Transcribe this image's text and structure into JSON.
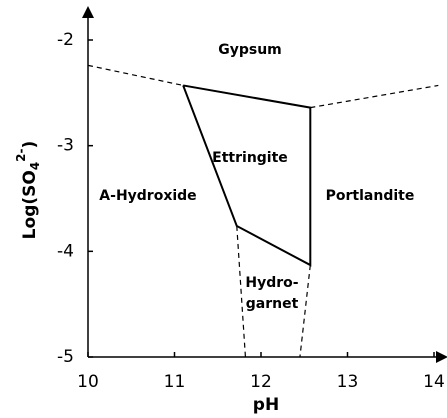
{
  "chart_data": {
    "type": "line",
    "xlabel": "pH",
    "ylabel": [
      "Log(SO",
      "4",
      "2-",
      ")"
    ],
    "xlim": [
      10,
      14
    ],
    "ylim": [
      -5,
      -2
    ],
    "xticks": [
      10,
      11,
      12,
      13,
      14
    ],
    "yticks": [
      -2,
      -3,
      -4,
      -5
    ],
    "series": [
      {
        "color": "#000000",
        "style": "dashed",
        "x": [
          10,
          11.1
        ],
        "y": [
          -2.24,
          -2.43
        ]
      },
      {
        "color": "#000000",
        "style": "solid",
        "x": [
          11.1,
          12.57,
          12.57,
          11.72,
          11.1
        ],
        "y": [
          -2.43,
          -2.64,
          -4.13,
          -3.76,
          -2.43
        ]
      },
      {
        "color": "#000000",
        "style": "dashed",
        "x": [
          12.57,
          14.05
        ],
        "y": [
          -2.64,
          -2.43
        ]
      },
      {
        "color": "#000000",
        "style": "dashed",
        "x": [
          11.72,
          11.82
        ],
        "y": [
          -3.76,
          -5
        ]
      },
      {
        "color": "#000000",
        "style": "dashed",
        "x": [
          12.57,
          12.45
        ],
        "y": [
          -4.13,
          -5
        ]
      }
    ],
    "annotations": [
      "Gypsum",
      "Ettringite",
      "A-Hydroxide",
      "Portlandite",
      "Hydro-",
      "garnet"
    ]
  }
}
